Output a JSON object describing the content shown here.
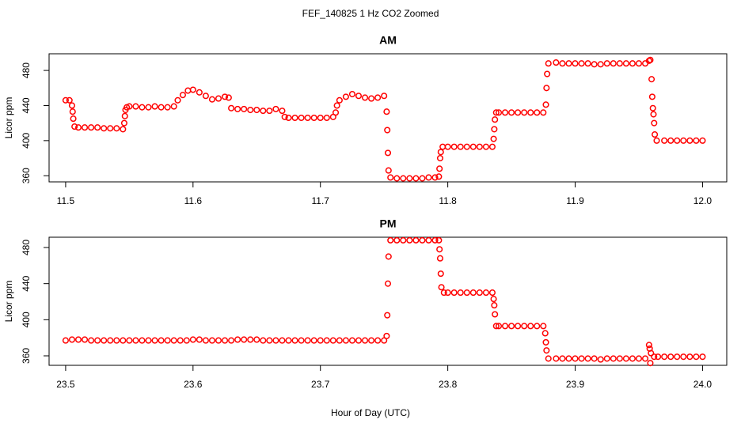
{
  "figure": {
    "title": "FEF_140825  1 Hz CO2 Zoomed",
    "x_label": "Hour of Day (UTC)"
  },
  "chart_data": [
    {
      "type": "scatter",
      "title": "AM",
      "y_label": "Licor ppm",
      "color": "#ff0000",
      "xlim": [
        11.487,
        12.019
      ],
      "ylim": [
        353,
        499
      ],
      "xticks": [
        11.5,
        11.6,
        11.7,
        11.8,
        11.9,
        {
          "value": 12,
          "label": "12.0"
        }
      ],
      "yticks": [
        360,
        400,
        440,
        480
      ],
      "x": [
        11.5,
        11.503,
        11.505,
        11.5055,
        11.506,
        11.507,
        11.51,
        11.515,
        11.52,
        11.525,
        11.53,
        11.535,
        11.54,
        11.545,
        11.546,
        11.5465,
        11.547,
        11.548,
        11.55,
        11.555,
        11.56,
        11.565,
        11.57,
        11.575,
        11.58,
        11.585,
        11.588,
        11.592,
        11.596,
        11.6,
        11.605,
        11.61,
        11.615,
        11.62,
        11.625,
        11.628,
        11.63,
        11.635,
        11.64,
        11.645,
        11.65,
        11.655,
        11.66,
        11.665,
        11.67,
        11.672,
        11.675,
        11.68,
        11.685,
        11.69,
        11.695,
        11.7,
        11.705,
        11.71,
        11.712,
        11.713,
        11.715,
        11.72,
        11.725,
        11.73,
        11.735,
        11.74,
        11.745,
        11.75,
        11.752,
        11.7525,
        11.753,
        11.7535,
        11.755,
        11.76,
        11.765,
        11.77,
        11.775,
        11.78,
        11.785,
        11.79,
        11.793,
        11.7935,
        11.794,
        11.7945,
        11.796,
        11.8,
        11.805,
        11.81,
        11.815,
        11.82,
        11.825,
        11.83,
        11.835,
        11.836,
        11.8365,
        11.837,
        11.838,
        11.84,
        11.845,
        11.85,
        11.855,
        11.86,
        11.865,
        11.87,
        11.875,
        11.877,
        11.8775,
        11.878,
        11.879,
        11.885,
        11.89,
        11.895,
        11.9,
        11.905,
        11.91,
        11.915,
        11.92,
        11.925,
        11.93,
        11.935,
        11.94,
        11.945,
        11.95,
        11.955,
        11.958,
        11.959,
        11.96,
        11.9605,
        11.961,
        11.9615,
        11.962,
        11.9625,
        11.964,
        11.97,
        11.975,
        11.98,
        11.985,
        11.99,
        11.995,
        12.0
      ],
      "values": [
        446,
        446,
        440,
        433,
        425,
        416,
        415,
        415,
        415,
        415,
        414,
        414,
        414,
        413,
        420,
        428,
        435,
        438,
        439,
        439,
        438,
        438,
        439,
        438,
        438,
        439,
        446,
        452,
        457,
        458,
        455,
        451,
        447,
        448,
        450,
        449,
        437,
        436,
        436,
        435,
        435,
        434,
        434,
        436,
        434,
        427,
        426,
        426,
        426,
        426,
        426,
        426,
        426,
        427,
        432,
        440,
        446,
        450,
        453,
        451,
        449,
        448,
        449,
        451,
        433,
        412,
        386,
        366,
        358,
        357,
        357,
        357,
        357,
        357,
        358,
        358,
        359,
        368,
        380,
        387,
        393,
        393,
        393,
        393,
        393,
        393,
        393,
        393,
        393,
        402,
        413,
        424,
        432,
        432,
        432,
        432,
        432,
        432,
        432,
        432,
        432,
        441,
        460,
        476,
        488,
        489,
        488,
        488,
        488,
        488,
        488,
        487,
        487,
        488,
        488,
        488,
        488,
        488,
        488,
        488,
        491,
        492,
        470,
        450,
        437,
        430,
        420,
        407,
        400,
        400,
        400,
        400,
        400,
        400,
        400,
        400
      ]
    },
    {
      "type": "scatter",
      "title": "PM",
      "y_label": "Licor ppm",
      "color": "#ff0000",
      "xlim": [
        23.487,
        24.019
      ],
      "ylim": [
        349.5,
        491.4
      ],
      "xticks": [
        23.5,
        23.6,
        23.7,
        23.8,
        23.9,
        {
          "value": 24,
          "label": "24.0"
        }
      ],
      "yticks": [
        360,
        400,
        440,
        480
      ],
      "x": [
        23.5,
        23.505,
        23.51,
        23.515,
        23.52,
        23.525,
        23.53,
        23.535,
        23.54,
        23.545,
        23.55,
        23.555,
        23.56,
        23.565,
        23.57,
        23.575,
        23.58,
        23.585,
        23.59,
        23.595,
        23.6,
        23.605,
        23.61,
        23.615,
        23.62,
        23.625,
        23.63,
        23.635,
        23.64,
        23.645,
        23.65,
        23.655,
        23.66,
        23.665,
        23.67,
        23.675,
        23.68,
        23.685,
        23.69,
        23.695,
        23.7,
        23.705,
        23.71,
        23.715,
        23.72,
        23.725,
        23.73,
        23.735,
        23.74,
        23.745,
        23.75,
        23.752,
        23.7525,
        23.753,
        23.7535,
        23.755,
        23.76,
        23.765,
        23.77,
        23.775,
        23.78,
        23.785,
        23.79,
        23.793,
        23.7935,
        23.794,
        23.7945,
        23.795,
        23.797,
        23.8,
        23.805,
        23.81,
        23.815,
        23.82,
        23.825,
        23.83,
        23.835,
        23.836,
        23.8365,
        23.837,
        23.838,
        23.84,
        23.845,
        23.85,
        23.855,
        23.86,
        23.865,
        23.87,
        23.875,
        23.8765,
        23.877,
        23.8775,
        23.879,
        23.885,
        23.89,
        23.895,
        23.9,
        23.905,
        23.91,
        23.915,
        23.92,
        23.925,
        23.93,
        23.935,
        23.94,
        23.945,
        23.95,
        23.955,
        23.958,
        23.9585,
        23.959,
        23.9595,
        23.962,
        23.965,
        23.97,
        23.975,
        23.98,
        23.985,
        23.99,
        23.995,
        24.0
      ],
      "values": [
        377,
        378,
        378,
        378,
        377,
        377,
        377,
        377,
        377,
        377,
        377,
        377,
        377,
        377,
        377,
        377,
        377,
        377,
        377,
        377,
        378,
        378,
        377,
        377,
        377,
        377,
        377,
        378,
        378,
        378,
        378,
        377,
        377,
        377,
        377,
        377,
        377,
        377,
        377,
        377,
        377,
        377,
        377,
        377,
        377,
        377,
        377,
        377,
        377,
        377,
        377,
        382,
        405,
        440,
        470,
        488,
        488,
        488,
        488,
        488,
        488,
        488,
        488,
        488,
        478,
        468,
        451,
        436,
        430,
        430,
        430,
        430,
        430,
        430,
        430,
        430,
        430,
        423,
        416,
        406,
        393,
        393,
        393,
        393,
        393,
        393,
        393,
        393,
        393,
        385,
        375,
        366,
        357,
        357,
        357,
        357,
        357,
        357,
        357,
        357,
        356,
        357,
        357,
        357,
        357,
        357,
        357,
        357,
        372,
        368,
        352,
        363,
        359,
        359,
        359,
        359,
        359,
        359,
        359,
        359,
        359
      ]
    }
  ]
}
